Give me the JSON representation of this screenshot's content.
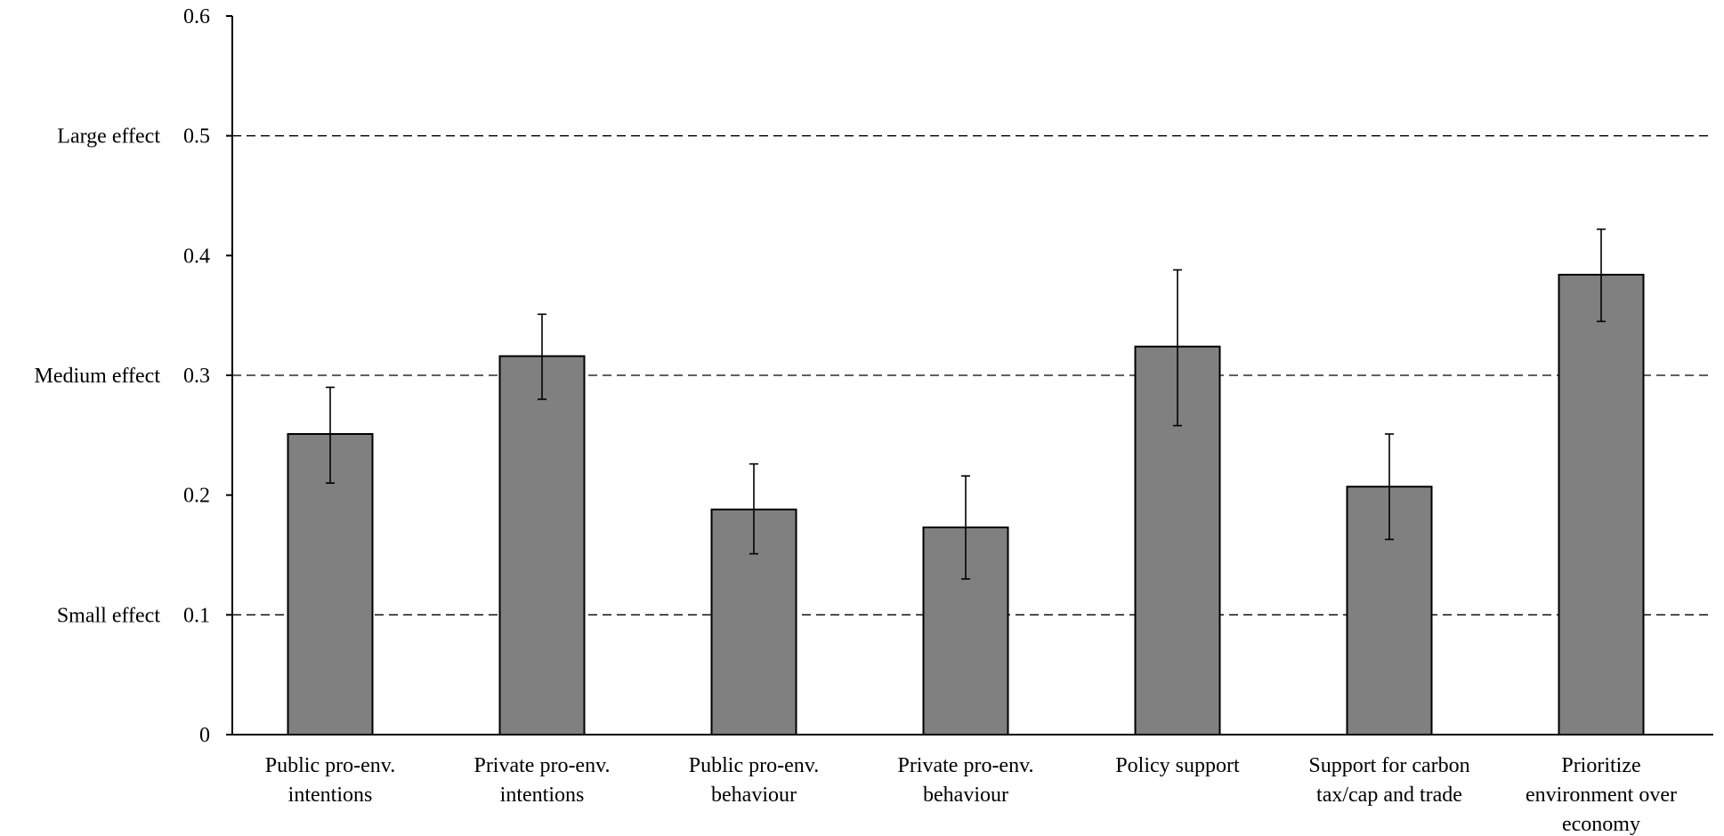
{
  "chart_data": {
    "type": "bar",
    "title": "",
    "xlabel": "",
    "ylabel": "",
    "ylim": [
      0,
      0.6
    ],
    "yticks": [
      {
        "value": 0,
        "label": "0"
      },
      {
        "value": 0.1,
        "label": "0.1"
      },
      {
        "value": 0.2,
        "label": "0.2"
      },
      {
        "value": 0.3,
        "label": "0.3"
      },
      {
        "value": 0.4,
        "label": "0.4"
      },
      {
        "value": 0.5,
        "label": "0.5"
      },
      {
        "value": 0.6,
        "label": "0.6"
      }
    ],
    "reference_lines": [
      {
        "value": 0.1,
        "label": "Small effect"
      },
      {
        "value": 0.3,
        "label": "Medium effect"
      },
      {
        "value": 0.5,
        "label": "Large effect"
      }
    ],
    "categories": [
      [
        "Public pro-env.",
        "intentions"
      ],
      [
        "Private pro-env.",
        "intentions"
      ],
      [
        "Public pro-env.",
        "behaviour"
      ],
      [
        "Private pro-env.",
        "behaviour"
      ],
      [
        "Policy support"
      ],
      [
        "Support for carbon",
        "tax/cap and trade"
      ],
      [
        "Prioritize",
        "environment over",
        "economy"
      ]
    ],
    "values": [
      0.251,
      0.316,
      0.188,
      0.173,
      0.324,
      0.207,
      0.384
    ],
    "error_low": [
      0.21,
      0.28,
      0.151,
      0.13,
      0.258,
      0.163,
      0.345
    ],
    "error_high": [
      0.29,
      0.351,
      0.226,
      0.216,
      0.388,
      0.251,
      0.422
    ],
    "bar_color": "#808080",
    "bar_edge_color": "#000000",
    "grid": false,
    "legend": "none"
  }
}
